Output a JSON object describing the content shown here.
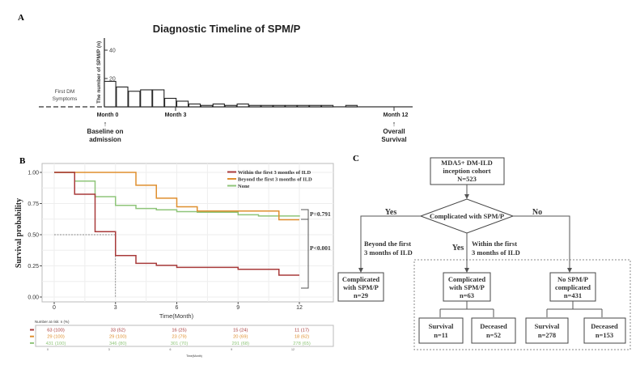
{
  "panel_labels": {
    "a": "A",
    "b": "B",
    "c": "C"
  },
  "chart_data": [
    {
      "type": "bar",
      "title": "Diagnostic Timeline of SPM/P",
      "ylabel": "The number of SPM/P (n)",
      "yticks": [
        20,
        40
      ],
      "ylim": [
        0,
        48
      ],
      "bin_width_months": 0.5,
      "values": [
        18,
        14,
        11,
        12,
        12,
        6,
        4,
        2,
        1,
        2,
        1,
        2,
        1,
        1,
        1,
        1,
        1,
        1,
        1,
        0,
        1,
        0,
        0,
        0
      ],
      "annotations": {
        "first_dm": [
          "First DM",
          "Symptoms"
        ],
        "month0": "Month 0",
        "month3": "Month 3",
        "month12": "Month 12",
        "baseline": [
          "Baseline on",
          "admission"
        ],
        "overall": [
          "Overall",
          "Survival"
        ],
        "arrow": "↑"
      }
    },
    {
      "type": "line",
      "xlabel": "Time(Month)",
      "ylabel": "Survival probability",
      "xlim": [
        0,
        12.5
      ],
      "ylim": [
        0,
        1
      ],
      "xticks": [
        0,
        3,
        6,
        9,
        12
      ],
      "yticks": [
        "0.00",
        "0.25",
        "0.50",
        "0.75",
        "1.00"
      ],
      "median_marker": {
        "x": 3,
        "y": 0.5
      },
      "series": [
        {
          "name": "Within the first 3 months of ILD",
          "color": "#a83a3a",
          "steps": [
            [
              0,
              1
            ],
            [
              1,
              0.825
            ],
            [
              2,
              0.524
            ],
            [
              3,
              0.333
            ],
            [
              4,
              0.27
            ],
            [
              5,
              0.254
            ],
            [
              6,
              0.238
            ],
            [
              9,
              0.222
            ],
            [
              11,
              0.175
            ],
            [
              12,
              0.175
            ]
          ]
        },
        {
          "name": "Beyond the first 3 months of ILD",
          "color": "#df8f2f",
          "steps": [
            [
              0,
              1
            ],
            [
              4,
              0.897
            ],
            [
              5,
              0.793
            ],
            [
              6,
              0.724
            ],
            [
              7,
              0.69
            ],
            [
              11,
              0.62
            ],
            [
              12,
              0.62
            ]
          ]
        },
        {
          "name": "None",
          "color": "#8fc57a",
          "steps": [
            [
              0,
              1
            ],
            [
              1,
              0.93
            ],
            [
              2,
              0.805
            ],
            [
              3,
              0.735
            ],
            [
              4,
              0.71
            ],
            [
              5,
              0.7
            ],
            [
              6,
              0.685
            ],
            [
              7,
              0.68
            ],
            [
              9,
              0.66
            ],
            [
              10,
              0.65
            ],
            [
              12,
              0.645
            ]
          ]
        }
      ],
      "pvalues": [
        "P=0.791",
        "P<0.001"
      ],
      "risk_table": {
        "title": "Number at risk: n (%)",
        "xlabel": "Time(Month)",
        "xticks": [
          "0",
          "3",
          "6",
          "9",
          "12"
        ],
        "rows": [
          [
            "63 (100)",
            "33 (52)",
            "16 (25)",
            "15 (24)",
            "11 (17)"
          ],
          [
            "29 (100)",
            "29 (100)",
            "23 (79)",
            "20 (69)",
            "18 (62)"
          ],
          [
            "431 (100)",
            "346 (80)",
            "301 (70)",
            "291 (68)",
            "278 (65)"
          ]
        ]
      }
    }
  ],
  "flowchart": {
    "cohort": [
      "MDA5+ DM-ILD",
      "inception cohort",
      "N=523"
    ],
    "decision": "Complicated with SPM/P",
    "yes_left": "Yes",
    "no_right": "No",
    "yes_mid": "Yes",
    "beyond": [
      "Beyond the first",
      "3 months of ILD"
    ],
    "within": [
      "Within the first",
      "3 months of ILD"
    ],
    "left_box": [
      "Complicated",
      "with SPM/P",
      "n=29"
    ],
    "mid_box": [
      "Complicated",
      "with SPM/P",
      "n=63"
    ],
    "right_box": [
      "No SPM/P",
      "complicated",
      "n=431"
    ],
    "outcomes": [
      [
        "Survival",
        "n=11"
      ],
      [
        "Deceased",
        "n=52"
      ],
      [
        "Survival",
        "n=278"
      ],
      [
        "Deceased",
        "n=153"
      ]
    ]
  }
}
